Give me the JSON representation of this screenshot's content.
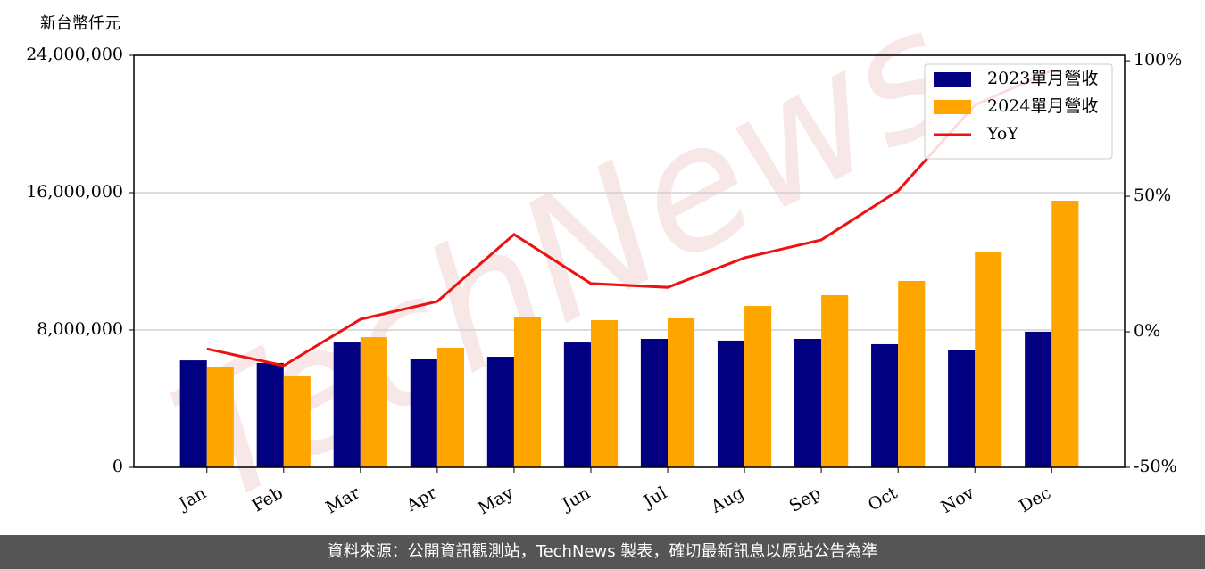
{
  "chart_data": {
    "type": "bar-line",
    "y_unit_label": "新台幣仟元",
    "watermark": "TechNews",
    "footer": "資料來源：公開資訊觀測站，TechNews 製表，確切最新訊息以原站公告為準",
    "categories": [
      "Jan",
      "Feb",
      "Mar",
      "Apr",
      "May",
      "Jun",
      "Jul",
      "Aug",
      "Sep",
      "Oct",
      "Nov",
      "Dec"
    ],
    "series": [
      {
        "name": "2023單月營收",
        "color": "#000080",
        "kind": "bar",
        "values": [
          6230000,
          6080000,
          7270000,
          6290000,
          6440000,
          7270000,
          7480000,
          7380000,
          7480000,
          7170000,
          6810000,
          7900000
        ]
      },
      {
        "name": "2024單月營收",
        "color": "#ffa500",
        "kind": "bar",
        "values": [
          5870000,
          5300000,
          7580000,
          6960000,
          8730000,
          8570000,
          8680000,
          9400000,
          10030000,
          10860000,
          12520000,
          15530000
        ]
      },
      {
        "name": "YoY",
        "color": "#ee1111",
        "kind": "line",
        "axis": "y2",
        "values": [
          -6.3,
          -12.5,
          4.6,
          11.2,
          35.9,
          17.8,
          16.4,
          27.3,
          33.9,
          52.0,
          83.6,
          96.4
        ]
      }
    ],
    "ylim": [
      0,
      24000000
    ],
    "yticks": [
      0,
      {
        "value": 8000000,
        "label": "8,000,000"
      },
      {
        "value": 16000000,
        "label": "16,000,000"
      },
      {
        "value": 24000000,
        "label": "24,000,000"
      }
    ],
    "y2lim": [
      -50,
      102
    ],
    "y2ticks": [
      {
        "value": -50,
        "label": "-50%"
      },
      {
        "value": 0,
        "label": "0%"
      },
      {
        "value": 50,
        "label": "50%"
      },
      {
        "value": 100,
        "label": "100%"
      }
    ],
    "grid": true,
    "legend": "upper right"
  }
}
